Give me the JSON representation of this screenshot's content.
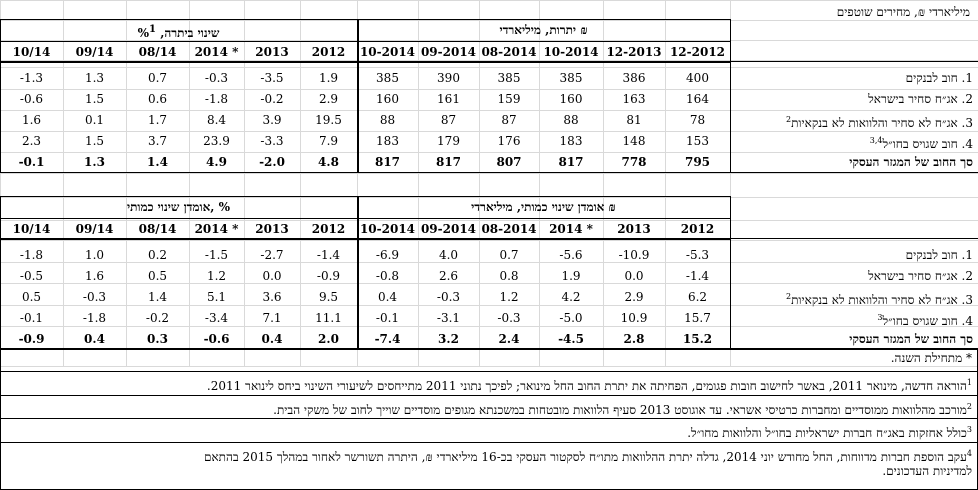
{
  "caption": "מיליארדי ₪, מחירים שוטפים",
  "top": {
    "stock_title": "יתרות, מיליארדי ₪",
    "change_title": "שינוי ביתרה, %",
    "change_title_sup": "1",
    "stock_cols": [
      "12-2012",
      "12-2013",
      "10-2014",
      "08-2014",
      "09-2014",
      "10-2014"
    ],
    "change_cols": [
      "2012",
      "2013",
      "2014 *",
      "08/14",
      "09/14",
      "10/14"
    ],
    "rows": [
      {
        "label": "1. חוב לבנקים",
        "sup": "",
        "stock": [
          "400",
          "386",
          "385",
          "385",
          "390",
          "385"
        ],
        "change": [
          "1.9",
          "-3.5",
          "-0.3",
          "0.7",
          "1.3",
          "-1.3"
        ]
      },
      {
        "label": "2. אג״ח סחיר בישראל",
        "sup": "",
        "stock": [
          "164",
          "163",
          "160",
          "159",
          "161",
          "160"
        ],
        "change": [
          "2.9",
          "-0.2",
          "-1.8",
          "0.6",
          "1.5",
          "-0.6"
        ]
      },
      {
        "label": "3. אג״ח לא סחיר והלוואות לא בנקאיות",
        "sup": "2",
        "stock": [
          "78",
          "81",
          "88",
          "87",
          "87",
          "88"
        ],
        "change": [
          "19.5",
          "3.9",
          "8.4",
          "1.7",
          "0.1",
          "1.6"
        ]
      },
      {
        "label": "4. חוב שגויס בחו״ל",
        "sup": "3,4",
        "stock": [
          "153",
          "148",
          "183",
          "176",
          "179",
          "183"
        ],
        "change": [
          "7.9",
          "-3.3",
          "23.9",
          "3.7",
          "1.5",
          "2.3"
        ]
      },
      {
        "label": "סך החוב של המגזר העסקי",
        "sup": "",
        "stock": [
          "795",
          "778",
          "817",
          "807",
          "817",
          "817"
        ],
        "change": [
          "4.8",
          "-2.0",
          "4.9",
          "1.4",
          "1.3",
          "-0.1"
        ]
      }
    ]
  },
  "bottom": {
    "stock_title": "אומדן שינוי כמותי, מיליארדי ₪",
    "change_title": "אומדן שינוי כמותי, %",
    "stock_cols": [
      "2012",
      "2013",
      "2014 *",
      "08-2014",
      "09-2014",
      "10-2014"
    ],
    "change_cols": [
      "2012",
      "2013",
      "2014 *",
      "08/14",
      "09/14",
      "10/14"
    ],
    "rows": [
      {
        "label": "1. חוב לבנקים",
        "sup": "",
        "stock": [
          "-5.3",
          "-10.9",
          "-5.6",
          "0.7",
          "4.0",
          "-6.9"
        ],
        "change": [
          "-1.4",
          "-2.7",
          "-1.5",
          "0.2",
          "1.0",
          "-1.8"
        ]
      },
      {
        "label": "2. אג״ח סחיר בישראל",
        "sup": "",
        "stock": [
          "-1.4",
          "0.0",
          "1.9",
          "0.8",
          "2.6",
          "-0.8"
        ],
        "change": [
          "-0.9",
          "0.0",
          "1.2",
          "0.5",
          "1.6",
          "-0.5"
        ]
      },
      {
        "label": "3. אג״ח לא סחיר והלוואות לא בנקאיות",
        "sup": "2",
        "stock": [
          "6.2",
          "2.9",
          "4.2",
          "1.2",
          "-0.3",
          "0.4"
        ],
        "change": [
          "9.5",
          "3.6",
          "5.1",
          "1.4",
          "-0.3",
          "0.5"
        ]
      },
      {
        "label": "4. חוב שגויס בחו״ל",
        "sup": "3",
        "stock": [
          "15.7",
          "10.9",
          "-5.0",
          "-0.3",
          "-3.1",
          "-0.1"
        ],
        "change": [
          "11.1",
          "7.1",
          "-3.4",
          "-0.2",
          "-1.8",
          "-0.1"
        ]
      },
      {
        "label": "סך החוב של המגזר העסקי",
        "sup": "",
        "stock": [
          "15.2",
          "2.8",
          "-4.5",
          "2.4",
          "3.2",
          "-7.4"
        ],
        "change": [
          "2.0",
          "0.4",
          "-0.6",
          "0.3",
          "0.4",
          "-0.9"
        ]
      }
    ]
  },
  "notes": [
    {
      "sup": "",
      "text": "* מתחילת השנה."
    },
    {
      "sup": "1",
      "text": "הוראה חדשה, מינואר 2011, באשר לחישוב חובות פגומים, הפחיתה את יתרת החוב החל מינואר; לפיכך נתוני 2011 מתייחסים לשיעורי השינוי ביחס לינואר 2011."
    },
    {
      "sup": "2",
      "text": "מורכב מהלוואות ממוסדיים ומחברות כרטיסי אשראי. עד אוגוסט 2013 סעיף הלוואות מובטחות במשכנתא מגופים מוסדיים שוייך לחוב של משקי הבית."
    },
    {
      "sup": "3",
      "text": "כולל אחזקות באג״ח חברות ישראליות בחו״ל והלוואות מחו״ל."
    },
    {
      "sup": "4",
      "text": "עקב הוספת חברות מדווחות, החל מחודש יוני 2014, גדלה יתרת ההלוואות מתו״ח לסקטור העסקי בכ-16 מיליארדי ₪, היתרה תשורשר לאחור במהלך 2015 בהתאם"
    },
    {
      "sup": "",
      "text": "למדיניות העדכונים."
    }
  ]
}
